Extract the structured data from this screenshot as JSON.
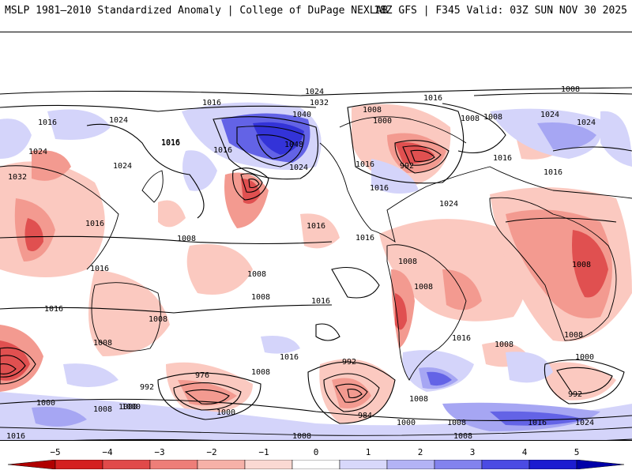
{
  "header": {
    "title_left": "MSLP 1981–2010 Standardized Anomaly | College of DuPage NEXLAB",
    "title_right": "18Z GFS | F345 Valid: 03Z SUN NOV 30 2025"
  },
  "legend": {
    "ticks": [
      "−5",
      "−4",
      "−3",
      "−2",
      "−1",
      "0",
      "1",
      "2",
      "3",
      "4",
      "5"
    ],
    "colors": [
      "#b00000",
      "#d42020",
      "#e14a4a",
      "#ee7e78",
      "#f6b1a8",
      "#fbd9d3",
      "#ffffff",
      "#d8d8fb",
      "#b3b3f5",
      "#8282ee",
      "#4b4be3",
      "#1c1cd0",
      "#0000a8"
    ]
  },
  "map": {
    "isobar_labels": [
      "1024",
      "1016",
      "1016",
      "1024",
      "1040",
      "1032",
      "1016",
      "1016",
      "1048",
      "1024",
      "1000",
      "1008",
      "992",
      "1016",
      "1016",
      "1008",
      "1024",
      "1024",
      "1016",
      "1024",
      "1032",
      "1016",
      "1016",
      "1016",
      "1024",
      "1016",
      "1008",
      "1008",
      "1016",
      "1008",
      "1024",
      "1016",
      "1008",
      "1016",
      "1008",
      "1008",
      "1008",
      "1016",
      "1008",
      "1008",
      "1008",
      "1016",
      "1008",
      "1016",
      "1016",
      "1008",
      "1008",
      "1000",
      "992",
      "992",
      "976",
      "1000",
      "992",
      "984",
      "1008",
      "1008",
      "1000",
      "1000",
      "1000",
      "1008",
      "1016",
      "1024",
      "1016",
      "1008",
      "1008",
      "1000"
    ]
  },
  "colors": {
    "neg_light": "#fbc9c0",
    "neg_mid": "#f39a90",
    "neg_strong": "#e05050",
    "neg_max": "#c41e1e",
    "pos_light": "#d4d4fa",
    "pos_mid": "#a6a6f3",
    "pos_strong": "#6363e6",
    "pos_max": "#3333d8",
    "contour": "#000000",
    "coast": "#000000"
  }
}
